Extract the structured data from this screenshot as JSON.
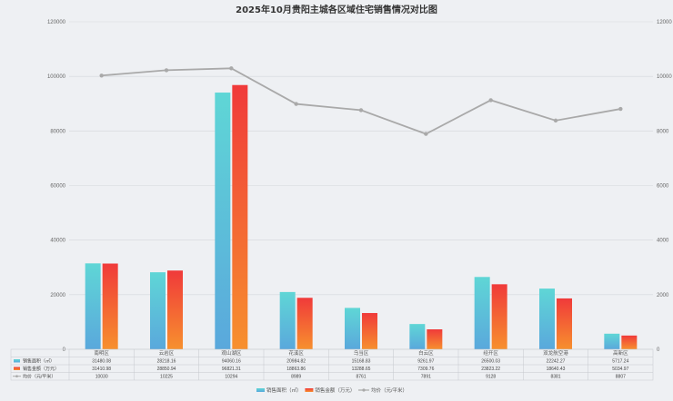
{
  "chart_data": {
    "type": "bar",
    "title": "2025年10月贵阳主城各区域住宅销售情况对比图",
    "categories": [
      "南明区",
      "云岩区",
      "观山湖区",
      "花溪区",
      "乌当区",
      "白云区",
      "经开区",
      "双龙航空港",
      "高新区"
    ],
    "series": [
      {
        "name": "销售面积（㎡）",
        "kind": "bar",
        "axis": "left",
        "values": [
          31480.08,
          28218.16,
          94060.16,
          20984.82,
          15168.83,
          9261.97,
          26500.03,
          22242.27,
          5717.24
        ],
        "labels": [
          "31480.08",
          "28218.16",
          "94060.16",
          "20984.82",
          "15168.83",
          "9261.97",
          "26500.03",
          "22242.27",
          "5717.24"
        ]
      },
      {
        "name": "销售金额（万元）",
        "kind": "bar",
        "axis": "left",
        "values": [
          31410.98,
          28850.94,
          96821.31,
          18863.86,
          13288.65,
          7309.76,
          23823.22,
          18640.43,
          5034.97
        ],
        "labels": [
          "31410.98",
          "28850.94",
          "96821.31",
          "18863.86",
          "13288.65",
          "7309.76",
          "23823.22",
          "18640.43",
          "5034.97"
        ]
      },
      {
        "name": "均价（元/平米）",
        "kind": "line",
        "axis": "right",
        "values": [
          10030,
          10225,
          10294,
          8989,
          8761,
          7891,
          9128,
          8381,
          8807
        ],
        "labels": [
          "10030",
          "10225",
          "10294",
          "8989",
          "8761",
          "7891",
          "9128",
          "8381",
          "8807"
        ]
      }
    ],
    "left_axis": {
      "min": 0,
      "max": 120000,
      "ticks": [
        "0",
        "20000",
        "40000",
        "60000",
        "80000",
        "100000",
        "120000"
      ]
    },
    "right_axis": {
      "min": 0,
      "max": 12000,
      "ticks": [
        "0",
        "2000",
        "4000",
        "6000",
        "8000",
        "10000",
        "12000"
      ]
    },
    "grid": true,
    "legend_position": "bottom",
    "colors": {
      "area_top": "#5fd6d6",
      "area_bottom": "#5aa8dc",
      "amount_top": "#f03a3a",
      "amount_bottom": "#f7902e",
      "line": "#a9a9a9",
      "grid": "#d4d7dc",
      "axis": "#999999"
    }
  }
}
